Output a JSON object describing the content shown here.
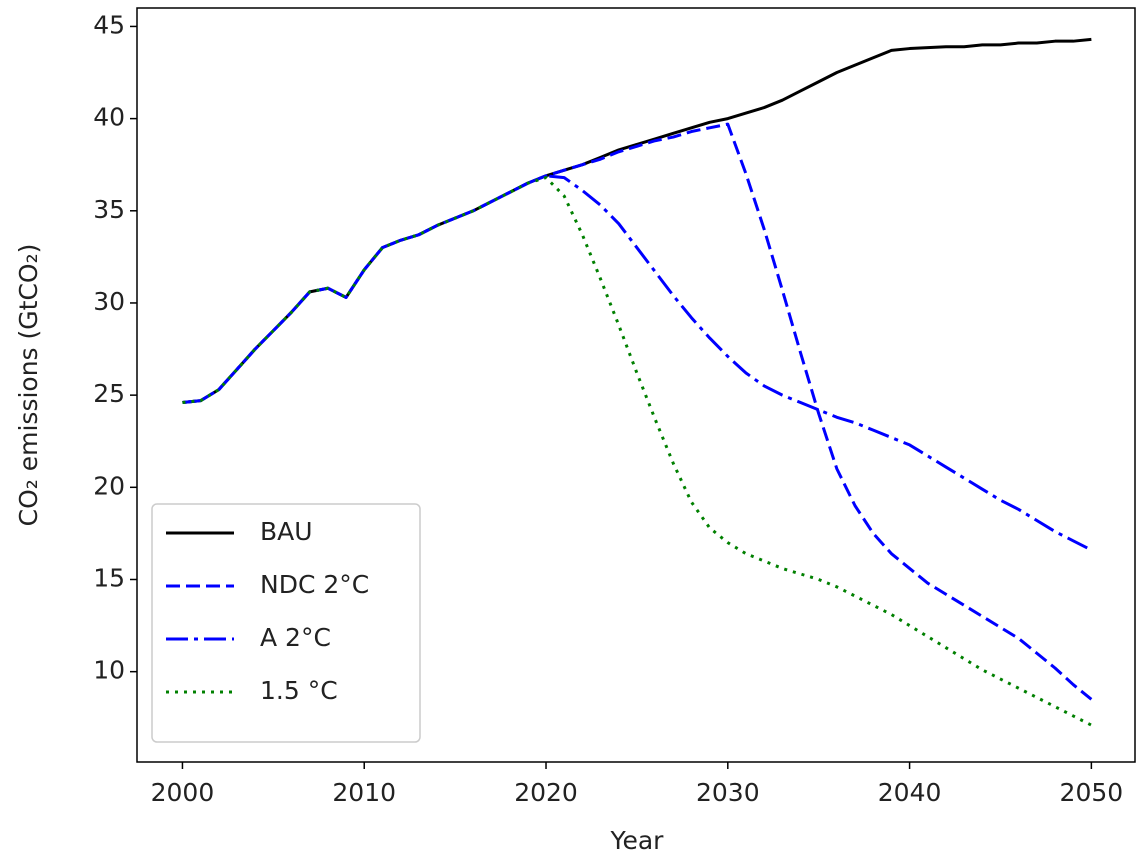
{
  "chart_data": {
    "type": "line",
    "xlabel": "Year",
    "ylabel": "CO₂ emissions (GtCO₂)",
    "x": [
      2000,
      2001,
      2002,
      2003,
      2004,
      2005,
      2006,
      2007,
      2008,
      2009,
      2010,
      2011,
      2012,
      2013,
      2014,
      2015,
      2016,
      2017,
      2018,
      2019,
      2020,
      2021,
      2022,
      2023,
      2024,
      2025,
      2026,
      2027,
      2028,
      2029,
      2030,
      2031,
      2032,
      2033,
      2034,
      2035,
      2036,
      2037,
      2038,
      2039,
      2040,
      2041,
      2042,
      2043,
      2044,
      2045,
      2046,
      2047,
      2048,
      2049,
      2050
    ],
    "series": [
      {
        "name": "BAU",
        "color": "#000000",
        "linestyle": "solid",
        "values": [
          24.6,
          24.7,
          25.3,
          26.4,
          27.5,
          28.5,
          29.5,
          30.6,
          30.8,
          30.3,
          31.8,
          33.0,
          33.4,
          33.7,
          34.2,
          34.6,
          35.0,
          35.5,
          36.0,
          36.5,
          36.9,
          37.2,
          37.5,
          37.9,
          38.3,
          38.6,
          38.9,
          39.2,
          39.5,
          39.8,
          40.0,
          40.3,
          40.6,
          41.0,
          41.5,
          42.0,
          42.5,
          42.9,
          43.3,
          43.7,
          43.8,
          43.85,
          43.9,
          43.9,
          44.0,
          44.0,
          44.1,
          44.1,
          44.2,
          44.2,
          44.3
        ]
      },
      {
        "name": "NDC 2°C",
        "color": "#0000ff",
        "linestyle": "dashed",
        "values": [
          24.6,
          24.7,
          25.3,
          26.4,
          27.5,
          28.5,
          29.5,
          30.6,
          30.8,
          30.3,
          31.8,
          33.0,
          33.4,
          33.7,
          34.2,
          34.6,
          35.0,
          35.5,
          36.0,
          36.5,
          36.9,
          37.2,
          37.5,
          37.8,
          38.2,
          38.5,
          38.8,
          39.0,
          39.3,
          39.5,
          39.7,
          37.0,
          34.0,
          30.7,
          27.3,
          24.0,
          21.0,
          19.0,
          17.5,
          16.4,
          15.6,
          14.8,
          14.2,
          13.6,
          13.0,
          12.4,
          11.8,
          11.0,
          10.2,
          9.3,
          8.5
        ]
      },
      {
        "name": "A 2°C",
        "color": "#0000ff",
        "linestyle": "dashdot",
        "values": [
          24.6,
          24.7,
          25.3,
          26.4,
          27.5,
          28.5,
          29.5,
          30.6,
          30.8,
          30.3,
          31.8,
          33.0,
          33.4,
          33.7,
          34.2,
          34.6,
          35.0,
          35.5,
          36.0,
          36.5,
          36.9,
          36.8,
          36.1,
          35.3,
          34.3,
          33.0,
          31.7,
          30.4,
          29.2,
          28.1,
          27.1,
          26.2,
          25.5,
          25.0,
          24.6,
          24.2,
          23.8,
          23.5,
          23.1,
          22.7,
          22.3,
          21.7,
          21.1,
          20.5,
          19.9,
          19.3,
          18.8,
          18.2,
          17.6,
          17.1,
          16.6
        ]
      },
      {
        "name": "1.5 °C",
        "color": "#008000",
        "linestyle": "dotted",
        "values": [
          24.6,
          24.7,
          25.3,
          26.4,
          27.5,
          28.5,
          29.5,
          30.6,
          30.8,
          30.3,
          31.8,
          33.0,
          33.4,
          33.7,
          34.2,
          34.6,
          35.0,
          35.5,
          36.0,
          36.5,
          36.8,
          35.8,
          33.7,
          31.3,
          28.8,
          26.2,
          23.7,
          21.3,
          19.2,
          17.8,
          17.0,
          16.4,
          16.0,
          15.6,
          15.3,
          15.0,
          14.6,
          14.1,
          13.6,
          13.1,
          12.5,
          11.9,
          11.3,
          10.7,
          10.1,
          9.6,
          9.1,
          8.6,
          8.1,
          7.6,
          7.1
        ]
      }
    ],
    "xlim": [
      1997.5,
      2052.4
    ],
    "xticks": [
      2000,
      2010,
      2020,
      2030,
      2040,
      2050
    ],
    "ylim": [
      5.1,
      46.0
    ],
    "yticks": [
      10,
      15,
      20,
      25,
      30,
      35,
      40,
      45
    ],
    "grid": false,
    "legend": "lower left"
  }
}
